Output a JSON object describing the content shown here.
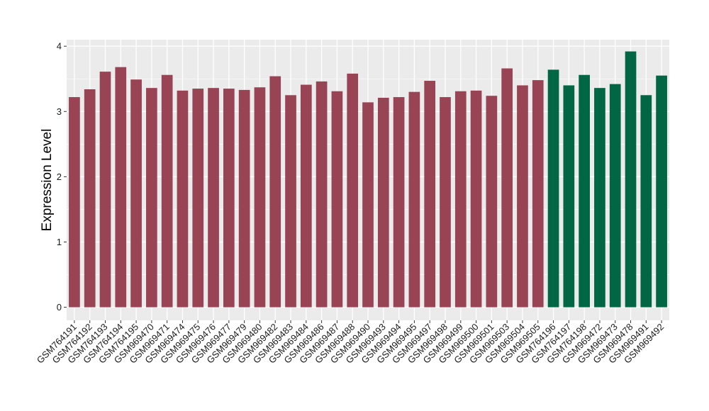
{
  "chart_data": {
    "type": "bar",
    "title": "",
    "xlabel": "",
    "ylabel": "Expression Level",
    "ylim": [
      -0.2,
      4.1
    ],
    "yticks": [
      0,
      1,
      2,
      3,
      4
    ],
    "grid": true,
    "legend": "none",
    "colors": {
      "group1": "#994455",
      "group2": "#006644",
      "panel": "#ebebeb",
      "grid": "#ffffff"
    },
    "categories": [
      "GSM764191",
      "GSM764192",
      "GSM764193",
      "GSM764194",
      "GSM764195",
      "GSM969470",
      "GSM969471",
      "GSM969474",
      "GSM969475",
      "GSM969476",
      "GSM969477",
      "GSM969479",
      "GSM969480",
      "GSM969482",
      "GSM969483",
      "GSM969484",
      "GSM969486",
      "GSM969487",
      "GSM969488",
      "GSM969490",
      "GSM969493",
      "GSM969494",
      "GSM969495",
      "GSM969497",
      "GSM969498",
      "GSM969499",
      "GSM969500",
      "GSM969501",
      "GSM969503",
      "GSM969504",
      "GSM969505",
      "GSM764196",
      "GSM764197",
      "GSM764198",
      "GSM969472",
      "GSM969473",
      "GSM969478",
      "GSM969491",
      "GSM969492"
    ],
    "values": [
      3.22,
      3.34,
      3.61,
      3.68,
      3.49,
      3.36,
      3.56,
      3.32,
      3.35,
      3.36,
      3.35,
      3.33,
      3.37,
      3.54,
      3.25,
      3.41,
      3.46,
      3.31,
      3.58,
      3.14,
      3.21,
      3.22,
      3.3,
      3.47,
      3.22,
      3.31,
      3.32,
      3.24,
      3.66,
      3.4,
      3.48,
      3.64,
      3.4,
      3.56,
      3.36,
      3.42,
      3.92,
      3.25,
      3.55
    ],
    "groups": [
      "group1",
      "group1",
      "group1",
      "group1",
      "group1",
      "group1",
      "group1",
      "group1",
      "group1",
      "group1",
      "group1",
      "group1",
      "group1",
      "group1",
      "group1",
      "group1",
      "group1",
      "group1",
      "group1",
      "group1",
      "group1",
      "group1",
      "group1",
      "group1",
      "group1",
      "group1",
      "group1",
      "group1",
      "group1",
      "group1",
      "group1",
      "group2",
      "group2",
      "group2",
      "group2",
      "group2",
      "group2",
      "group2",
      "group2"
    ]
  }
}
